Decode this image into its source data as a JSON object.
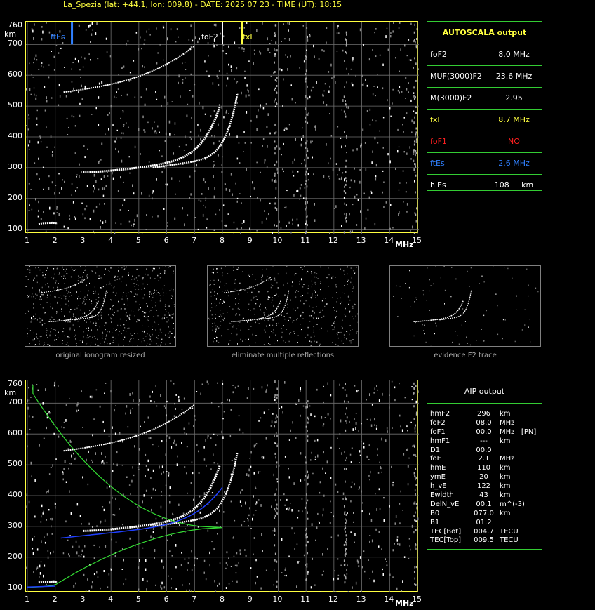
{
  "title": "La_Spezia (lat: +44.1, lon: 009.8) - DATE: 2025 07 23 - TIME (UT): 18:15",
  "axes": {
    "y_ticks": [
      "760",
      "700",
      "600",
      "500",
      "400",
      "300",
      "200",
      "100"
    ],
    "y_unit": "km",
    "x_ticks": [
      "1",
      "2",
      "3",
      "4",
      "5",
      "6",
      "7",
      "8",
      "9",
      "10",
      "11",
      "12",
      "13",
      "14",
      "15"
    ],
    "x_unit": "MHz"
  },
  "markers": {
    "ftEs": {
      "label": "ftEs",
      "freq": 2.6,
      "color": "#3080ff"
    },
    "foF2": {
      "label": "foF2",
      "freq": 8.0,
      "color": "#ffffff"
    },
    "fxI": {
      "label": "fxI",
      "freq": 8.7,
      "color": "#ffff40"
    }
  },
  "autoscala": {
    "header": "AUTOSCALA output",
    "rows": [
      {
        "key": "foF2",
        "value": "8.0 MHz",
        "color": "#ffffff"
      },
      {
        "key": "MUF(3000)F2",
        "value": "23.6 MHz",
        "color": "#ffffff"
      },
      {
        "key": "M(3000)F2",
        "value": "2.95",
        "color": "#ffffff"
      },
      {
        "key": "fxI",
        "value": "8.7 MHz",
        "color": "#ffff40"
      },
      {
        "key": "foF1",
        "value": "NO",
        "color": "#ff2020"
      },
      {
        "key": "ftEs",
        "value": "2.6 MHz",
        "color": "#3080ff"
      },
      {
        "key": "h'Es",
        "value": "108     km",
        "color": "#ffffff"
      }
    ]
  },
  "thumbnails": [
    {
      "caption": "original ionogram resized"
    },
    {
      "caption": "eliminate multiple reflections"
    },
    {
      "caption": "evidence F2 trace"
    }
  ],
  "aip": {
    "header": "AIP output",
    "rows": [
      {
        "param": "hmF2",
        "value": "296",
        "unit": "km"
      },
      {
        "param": "foF2",
        "value": "08.0",
        "unit": "MHz"
      },
      {
        "param": "foF1",
        "value": "00.0",
        "unit": "MHz   [PN]"
      },
      {
        "param": "hmF1",
        "value": "---",
        "unit": "km"
      },
      {
        "param": "D1",
        "value": "00.0",
        "unit": ""
      },
      {
        "param": "foE",
        "value": "2.1",
        "unit": "MHz"
      },
      {
        "param": "hmE",
        "value": "110",
        "unit": "km"
      },
      {
        "param": "ymE",
        "value": "20",
        "unit": "km"
      },
      {
        "param": "h_vE",
        "value": "122",
        "unit": "km"
      },
      {
        "param": "Ewidth",
        "value": "43",
        "unit": "km"
      },
      {
        "param": "DelN_vE",
        "value": "00.1",
        "unit": "m^(-3)"
      },
      {
        "param": "B0",
        "value": "077.0",
        "unit": "km"
      },
      {
        "param": "B1",
        "value": "01.2",
        "unit": ""
      },
      {
        "param": "TEC[Bot]",
        "value": "004.7",
        "unit": "TECU"
      },
      {
        "param": "TEC[Top]",
        "value": "009.5",
        "unit": "TECU"
      }
    ]
  },
  "colors": {
    "frame": "#ffff40",
    "table_border": "#33cc33",
    "profile": "#33dd33",
    "model": "#2040ff"
  }
}
